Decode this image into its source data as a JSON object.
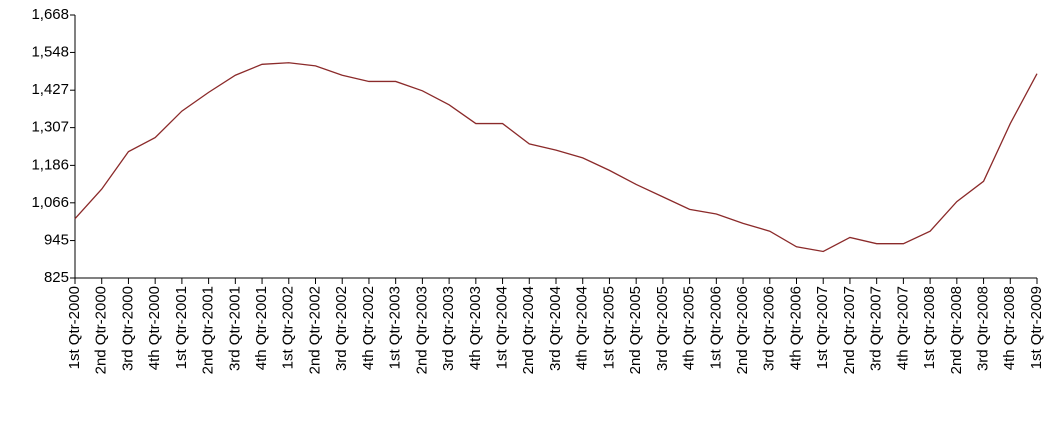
{
  "chart_data": {
    "type": "line",
    "categories": [
      "1st Qtr-2000",
      "2nd Qtr-2000",
      "3rd Qtr-2000",
      "4th Qtr-2000",
      "1st Qtr-2001",
      "2nd Qtr-2001",
      "3rd Qtr-2001",
      "4th Qtr-2001",
      "1st Qtr-2002",
      "2nd Qtr-2002",
      "3rd Qtr-2002",
      "4th Qtr-2002",
      "1st Qtr-2003",
      "2nd Qtr-2003",
      "3rd Qtr-2003",
      "4th Qtr-2003",
      "1st Qtr-2004",
      "2nd Qtr-2004",
      "3rd Qtr-2004",
      "4th Qtr-2004",
      "1st Qtr-2005",
      "2nd Qtr-2005",
      "3rd Qtr-2005",
      "4th Qtr-2005",
      "1st Qtr-2006",
      "2nd Qtr-2006",
      "3rd Qtr-2006",
      "4th Qtr-2006",
      "1st Qtr-2007",
      "2nd Qtr-2007",
      "3rd Qtr-2007",
      "4th Qtr-2007",
      "1st Qtr-2008",
      "2nd Qtr-2008",
      "3rd Qtr-2008",
      "4th Qtr-2008",
      "1st Qtr-2009"
    ],
    "values": [
      1015,
      1110,
      1230,
      1275,
      1360,
      1420,
      1475,
      1510,
      1515,
      1505,
      1475,
      1455,
      1455,
      1425,
      1380,
      1320,
      1320,
      1255,
      1235,
      1210,
      1170,
      1125,
      1085,
      1045,
      1030,
      1000,
      975,
      925,
      910,
      955,
      935,
      935,
      975,
      1070,
      1135,
      1320,
      1480
    ],
    "color": "#8b2a2a",
    "ylim": [
      825,
      1668
    ],
    "yticks": [
      825,
      945,
      {
        "value": 1066,
        "label": "1,066"
      },
      {
        "value": 1186,
        "label": "1,186"
      },
      {
        "value": 1307,
        "label": "1,307"
      },
      {
        "value": 1427,
        "label": "1,427"
      },
      {
        "value": 1548,
        "label": "1,548"
      },
      {
        "value": 1668,
        "label": "1,668"
      }
    ],
    "grid": false
  }
}
